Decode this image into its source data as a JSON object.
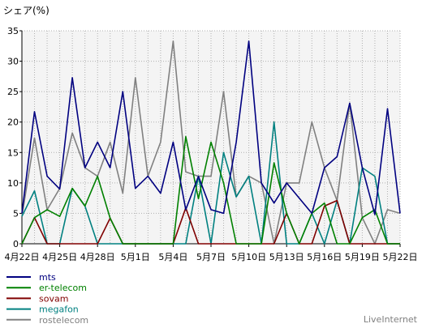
{
  "chart_data": {
    "type": "line",
    "title": "シェア(%)",
    "credit": "LiveInternet",
    "ylim": [
      0,
      35
    ],
    "y_ticks": [
      0,
      5,
      10,
      15,
      20,
      25,
      30,
      35
    ],
    "x_tick_labels": [
      "4月22日",
      "4月25日",
      "4月28日",
      "5月1日",
      "5月4日",
      "5月7日",
      "5月10日",
      "5月13日",
      "5月16日",
      "5月19日",
      "5月22日"
    ],
    "x_tick_index": [
      0,
      3,
      6,
      9,
      12,
      15,
      18,
      21,
      24,
      27,
      30
    ],
    "grid": true,
    "legend_position": "bottom-left",
    "series": [
      {
        "name": "mts",
        "color": "#000080",
        "values": [
          5,
          21.7,
          11.1,
          9,
          27.3,
          12.5,
          16.7,
          12.5,
          25,
          9.1,
          11.1,
          8.3,
          16.7,
          5.6,
          11.1,
          5.6,
          5,
          16.7,
          33.3,
          10,
          6.7,
          10,
          7.5,
          5,
          12.5,
          14.3,
          23.1,
          12.5,
          4.8,
          22.2,
          5
        ]
      },
      {
        "name": "er-telecom",
        "color": "#008000",
        "values": [
          0,
          4.3,
          5.6,
          4.5,
          9.1,
          6.2,
          11.1,
          4.2,
          0,
          0,
          0,
          0,
          0,
          17.6,
          7.4,
          16.7,
          10,
          0,
          0,
          0,
          13.3,
          5,
          0,
          5,
          6.7,
          0,
          0,
          4.3,
          5.6,
          0,
          0
        ]
      },
      {
        "name": "sovam",
        "color": "#800000",
        "values": [
          0,
          4.3,
          0,
          0,
          0,
          0,
          0,
          4.2,
          0,
          0,
          0,
          0,
          0,
          5.9,
          0,
          0,
          0,
          0,
          0,
          0,
          0,
          5,
          0,
          0,
          6.2,
          7.1,
          0,
          0,
          0,
          0,
          0
        ]
      },
      {
        "name": "megafon",
        "color": "#008080",
        "values": [
          4.5,
          8.7,
          0,
          0,
          9.1,
          6.2,
          0,
          0,
          0,
          0,
          0,
          0,
          0,
          0,
          11.1,
          0,
          15,
          7.7,
          11.1,
          0,
          20,
          0,
          0,
          5,
          0,
          7.1,
          0,
          12.5,
          11.1,
          0,
          0
        ]
      },
      {
        "name": "rostelecom",
        "color": "#808080",
        "values": [
          4.5,
          17.4,
          5.6,
          9.1,
          18.2,
          12.5,
          11.1,
          16.7,
          8.3,
          27.3,
          11.1,
          16.7,
          33.3,
          11.8,
          11.1,
          11.1,
          25,
          7.7,
          11.1,
          10,
          0,
          10,
          10,
          20,
          12.5,
          7.1,
          23.1,
          4.3,
          0,
          5.6,
          5
        ]
      }
    ]
  }
}
